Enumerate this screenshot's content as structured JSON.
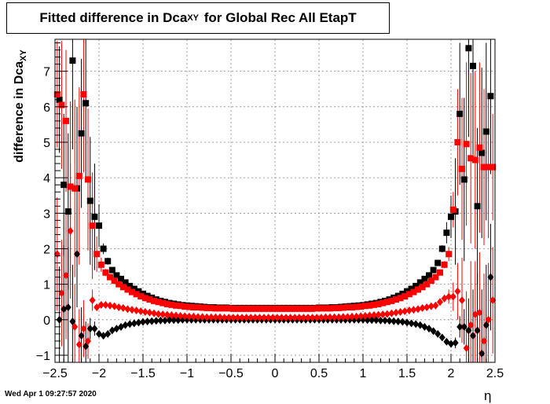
{
  "chart_data": {
    "type": "scatter",
    "title_prefix": "Fitted difference in Dca",
    "title_sub": "XY",
    "title_suffix": " for Global Rec All EtapT",
    "ylabel_prefix": "difference in Dca",
    "ylabel_sub": "XY",
    "xlabel": "η",
    "xlim": [
      -2.5,
      2.5
    ],
    "ylim": [
      -1.2,
      7.9
    ],
    "xticks": [
      -2.5,
      -2,
      -1.5,
      -1,
      -0.5,
      0,
      0.5,
      1,
      1.5,
      2,
      2.5
    ],
    "xtick_labels": [
      "−2.5",
      "−2",
      "−1.5",
      "−1",
      "−0.5",
      "0",
      "0.5",
      "1",
      "1.5",
      "2",
      "2.5"
    ],
    "yticks": [
      -1,
      0,
      1,
      2,
      3,
      4,
      5,
      6,
      7
    ],
    "ytick_labels": [
      "−1",
      "0",
      "1",
      "2",
      "3",
      "4",
      "5",
      "6",
      "7"
    ],
    "grid": true,
    "series": [
      {
        "marker": "square",
        "color": "#000000",
        "x": [
          -2.45,
          -2.4,
          -2.35,
          -2.3,
          -2.25,
          -2.2,
          -2.15,
          -2.1,
          -2.05,
          -2.0,
          -1.95,
          -1.9,
          -1.85,
          -1.8,
          -1.75,
          -1.7,
          -1.65,
          -1.6,
          -1.55,
          -1.5,
          -1.45,
          -1.4,
          -1.35,
          -1.3,
          -1.25,
          -1.2,
          -1.15,
          -1.1,
          -1.05,
          -1.0,
          -0.95,
          -0.9,
          -0.85,
          -0.8,
          -0.75,
          -0.7,
          -0.65,
          -0.6,
          -0.55,
          -0.5,
          -0.45,
          -0.4,
          -0.35,
          -0.3,
          -0.25,
          -0.2,
          -0.15,
          -0.1,
          -0.05,
          0.0,
          0.05,
          0.1,
          0.15,
          0.2,
          0.25,
          0.3,
          0.35,
          0.4,
          0.45,
          0.5,
          0.55,
          0.6,
          0.65,
          0.7,
          0.75,
          0.8,
          0.85,
          0.9,
          0.95,
          1.0,
          1.05,
          1.1,
          1.15,
          1.2,
          1.25,
          1.3,
          1.35,
          1.4,
          1.45,
          1.5,
          1.55,
          1.6,
          1.65,
          1.7,
          1.75,
          1.8,
          1.85,
          1.9,
          1.95,
          2.0,
          2.05,
          2.1,
          2.15,
          2.2,
          2.25,
          2.3,
          2.35,
          2.4,
          2.45
        ],
        "y": [
          6.2,
          3.8,
          3.05,
          7.3,
          3.7,
          5.25,
          6.1,
          3.35,
          2.9,
          2.65,
          2.0,
          1.65,
          1.4,
          1.25,
          1.15,
          1.05,
          0.95,
          0.87,
          0.8,
          0.73,
          0.67,
          0.62,
          0.57,
          0.53,
          0.5,
          0.47,
          0.45,
          0.43,
          0.41,
          0.4,
          0.39,
          0.38,
          0.37,
          0.36,
          0.35,
          0.35,
          0.34,
          0.34,
          0.34,
          0.33,
          0.33,
          0.33,
          0.33,
          0.33,
          0.33,
          0.33,
          0.33,
          0.33,
          0.33,
          0.33,
          0.33,
          0.33,
          0.33,
          0.33,
          0.33,
          0.33,
          0.33,
          0.33,
          0.33,
          0.34,
          0.34,
          0.34,
          0.35,
          0.35,
          0.36,
          0.37,
          0.38,
          0.39,
          0.4,
          0.41,
          0.43,
          0.45,
          0.47,
          0.5,
          0.53,
          0.57,
          0.62,
          0.67,
          0.73,
          0.8,
          0.87,
          0.95,
          1.05,
          1.15,
          1.25,
          1.4,
          1.6,
          2.0,
          2.45,
          2.9,
          3.05,
          5.8,
          3.95,
          7.65,
          7.15,
          3.2,
          4.7,
          5.3,
          6.3
        ],
        "err": [
          1.5,
          2.0,
          2.2,
          2.5,
          2.3,
          2.1,
          2.2,
          1.8,
          1.5,
          0.6,
          0.15,
          0.1,
          0.05,
          0.05,
          0,
          0,
          0,
          0,
          0,
          0,
          0,
          0,
          0,
          0,
          0,
          0,
          0,
          0,
          0,
          0,
          0,
          0,
          0,
          0,
          0,
          0,
          0,
          0,
          0,
          0,
          0,
          0,
          0,
          0,
          0,
          0,
          0,
          0,
          0,
          0,
          0,
          0,
          0,
          0,
          0,
          0,
          0,
          0,
          0,
          0,
          0,
          0,
          0,
          0,
          0,
          0,
          0,
          0,
          0,
          0,
          0,
          0,
          0,
          0,
          0,
          0,
          0,
          0,
          0,
          0,
          0,
          0,
          0,
          0,
          0,
          0.05,
          0.05,
          0.1,
          0.3,
          0.6,
          1.5,
          2.0,
          2.3,
          2.5,
          2.5,
          2.2,
          2.4,
          2.5,
          2.2
        ]
      },
      {
        "marker": "square",
        "color": "#ff0000",
        "x": [
          -2.475,
          -2.425,
          -2.375,
          -2.325,
          -2.275,
          -2.225,
          -2.175,
          -2.125,
          -2.075,
          -2.025,
          -1.975,
          -1.925,
          -1.875,
          -1.825,
          -1.775,
          -1.725,
          -1.675,
          -1.625,
          -1.575,
          -1.525,
          -1.475,
          -1.425,
          -1.375,
          -1.325,
          -1.275,
          -1.225,
          -1.175,
          -1.125,
          -1.075,
          -1.025,
          -0.975,
          -0.925,
          -0.875,
          -0.825,
          -0.775,
          -0.725,
          -0.675,
          -0.625,
          -0.575,
          -0.525,
          -0.475,
          -0.425,
          -0.375,
          -0.325,
          -0.275,
          -0.225,
          -0.175,
          -0.125,
          -0.075,
          -0.025,
          0.025,
          0.075,
          0.125,
          0.175,
          0.225,
          0.275,
          0.325,
          0.375,
          0.425,
          0.475,
          0.525,
          0.575,
          0.625,
          0.675,
          0.725,
          0.775,
          0.825,
          0.875,
          0.925,
          0.975,
          1.025,
          1.075,
          1.125,
          1.175,
          1.225,
          1.275,
          1.325,
          1.375,
          1.425,
          1.475,
          1.525,
          1.575,
          1.625,
          1.675,
          1.725,
          1.775,
          1.825,
          1.875,
          1.925,
          1.975,
          2.025,
          2.075,
          2.125,
          2.175,
          2.225,
          2.275,
          2.325,
          2.375,
          2.425,
          2.475
        ],
        "y": [
          6.35,
          6.05,
          5.6,
          3.75,
          3.7,
          4.05,
          6.35,
          3.95,
          2.65,
          1.85,
          1.55,
          1.33,
          1.2,
          1.1,
          1.0,
          0.92,
          0.85,
          0.78,
          0.72,
          0.66,
          0.61,
          0.57,
          0.53,
          0.5,
          0.47,
          0.44,
          0.42,
          0.4,
          0.39,
          0.37,
          0.36,
          0.35,
          0.35,
          0.34,
          0.33,
          0.33,
          0.32,
          0.32,
          0.32,
          0.32,
          0.31,
          0.31,
          0.31,
          0.31,
          0.31,
          0.31,
          0.31,
          0.31,
          0.31,
          0.31,
          0.31,
          0.31,
          0.31,
          0.31,
          0.31,
          0.31,
          0.31,
          0.31,
          0.31,
          0.32,
          0.32,
          0.32,
          0.32,
          0.33,
          0.33,
          0.34,
          0.35,
          0.35,
          0.36,
          0.37,
          0.39,
          0.4,
          0.42,
          0.44,
          0.47,
          0.5,
          0.53,
          0.57,
          0.61,
          0.66,
          0.72,
          0.78,
          0.85,
          0.92,
          1.0,
          1.1,
          1.2,
          1.33,
          1.55,
          1.85,
          3.1,
          5.0,
          4.25,
          4.95,
          4.55,
          4.5,
          4.85,
          4.3,
          4.3,
          4.3
        ],
        "err": [
          1.5,
          1.8,
          2.0,
          2.4,
          2.5,
          2.5,
          2.2,
          2.0,
          1.5,
          0.5,
          0.2,
          0.1,
          0.05,
          0,
          0,
          0,
          0,
          0,
          0,
          0,
          0,
          0,
          0,
          0,
          0,
          0,
          0,
          0,
          0,
          0,
          0,
          0,
          0,
          0,
          0,
          0,
          0,
          0,
          0,
          0,
          0,
          0,
          0,
          0,
          0,
          0,
          0,
          0,
          0,
          0,
          0,
          0,
          0,
          0,
          0,
          0,
          0,
          0,
          0,
          0,
          0,
          0,
          0,
          0,
          0,
          0,
          0,
          0,
          0,
          0,
          0,
          0,
          0,
          0,
          0,
          0,
          0,
          0,
          0,
          0,
          0,
          0,
          0,
          0,
          0,
          0,
          0,
          0.05,
          0.1,
          0.2,
          0.5,
          1.5,
          2.0,
          2.3,
          2.4,
          2.5,
          2.4,
          2.2,
          2.0,
          1.5
        ]
      },
      {
        "marker": "diamond",
        "color": "#000000",
        "x": [
          -2.45,
          -2.4,
          -2.35,
          -2.3,
          -2.25,
          -2.2,
          -2.15,
          -2.1,
          -2.05,
          -2.0,
          -1.95,
          -1.9,
          -1.85,
          -1.8,
          -1.75,
          -1.7,
          -1.65,
          -1.6,
          -1.55,
          -1.5,
          -1.45,
          -1.4,
          -1.35,
          -1.3,
          -1.25,
          -1.2,
          -1.15,
          -1.1,
          -1.05,
          -1.0,
          -0.95,
          -0.9,
          -0.85,
          -0.8,
          -0.75,
          -0.7,
          -0.65,
          -0.6,
          -0.55,
          -0.5,
          -0.45,
          -0.4,
          -0.35,
          -0.3,
          -0.25,
          -0.2,
          -0.15,
          -0.1,
          -0.05,
          0.0,
          0.05,
          0.1,
          0.15,
          0.2,
          0.25,
          0.3,
          0.35,
          0.4,
          0.45,
          0.5,
          0.55,
          0.6,
          0.65,
          0.7,
          0.75,
          0.8,
          0.85,
          0.9,
          0.95,
          1.0,
          1.05,
          1.1,
          1.15,
          1.2,
          1.25,
          1.3,
          1.35,
          1.4,
          1.45,
          1.5,
          1.55,
          1.6,
          1.65,
          1.7,
          1.75,
          1.8,
          1.85,
          1.9,
          1.95,
          2.0,
          2.05,
          2.1,
          2.15,
          2.2,
          2.25,
          2.3,
          2.35,
          2.4,
          2.45
        ],
        "y": [
          0.0,
          0.3,
          0.35,
          -0.05,
          1.85,
          -0.45,
          -0.75,
          -0.25,
          -0.25,
          -0.4,
          -0.45,
          -0.4,
          -0.3,
          -0.25,
          -0.2,
          -0.15,
          -0.12,
          -0.1,
          -0.08,
          -0.06,
          -0.05,
          -0.04,
          -0.03,
          -0.02,
          -0.02,
          -0.01,
          -0.01,
          -0.01,
          0.0,
          0.0,
          0.0,
          0.0,
          0.0,
          0.0,
          0.0,
          0.0,
          0.0,
          0.0,
          0.0,
          0.0,
          0.0,
          0.0,
          0.0,
          0.0,
          0.0,
          0.0,
          0.0,
          0.0,
          0.0,
          0.0,
          0.0,
          0.0,
          0.0,
          0.0,
          0.0,
          0.0,
          0.0,
          0.0,
          0.0,
          0.0,
          0.0,
          0.0,
          0.0,
          0.0,
          0.0,
          0.0,
          0.0,
          0.0,
          0.0,
          0.0,
          -0.01,
          -0.01,
          -0.01,
          -0.02,
          -0.02,
          -0.03,
          -0.04,
          -0.05,
          -0.06,
          -0.08,
          -0.1,
          -0.12,
          -0.15,
          -0.2,
          -0.25,
          -0.32,
          -0.4,
          -0.5,
          -0.62,
          -0.68,
          -0.65,
          -0.2,
          -0.2,
          -0.3,
          -0.45,
          -0.3,
          -0.95,
          -0.15,
          1.2
        ],
        "err": [
          1.5,
          1.8,
          1.7,
          1.6,
          1.5,
          0.8,
          0.7,
          0.3,
          0.2,
          0.1,
          0.05,
          0,
          0,
          0,
          0,
          0,
          0,
          0,
          0,
          0,
          0,
          0,
          0,
          0,
          0,
          0,
          0,
          0,
          0,
          0,
          0,
          0,
          0,
          0,
          0,
          0,
          0,
          0,
          0,
          0,
          0,
          0,
          0,
          0,
          0,
          0,
          0,
          0,
          0,
          0,
          0,
          0,
          0,
          0,
          0,
          0,
          0,
          0,
          0,
          0,
          0,
          0,
          0,
          0,
          0,
          0,
          0,
          0,
          0,
          0,
          0,
          0,
          0,
          0,
          0,
          0,
          0,
          0,
          0,
          0,
          0,
          0,
          0,
          0,
          0,
          0,
          0,
          0,
          0.05,
          0.1,
          0.15,
          0.3,
          0.5,
          0.9,
          1.3,
          1.6,
          1.8,
          1.7,
          1.5
        ]
      },
      {
        "marker": "diamond",
        "color": "#ff0000",
        "x": [
          -2.475,
          -2.425,
          -2.375,
          -2.325,
          -2.275,
          -2.225,
          -2.175,
          -2.125,
          -2.075,
          -2.025,
          -1.975,
          -1.925,
          -1.875,
          -1.825,
          -1.775,
          -1.725,
          -1.675,
          -1.625,
          -1.575,
          -1.525,
          -1.475,
          -1.425,
          -1.375,
          -1.325,
          -1.275,
          -1.225,
          -1.175,
          -1.125,
          -1.075,
          -1.025,
          -0.975,
          -0.925,
          -0.875,
          -0.825,
          -0.775,
          -0.725,
          -0.675,
          -0.625,
          -0.575,
          -0.525,
          -0.475,
          -0.425,
          -0.375,
          -0.325,
          -0.275,
          -0.225,
          -0.175,
          -0.125,
          -0.075,
          -0.025,
          0.025,
          0.075,
          0.125,
          0.175,
          0.225,
          0.275,
          0.325,
          0.375,
          0.425,
          0.475,
          0.525,
          0.575,
          0.625,
          0.675,
          0.725,
          0.775,
          0.825,
          0.875,
          0.925,
          0.975,
          1.025,
          1.075,
          1.125,
          1.175,
          1.225,
          1.275,
          1.325,
          1.375,
          1.425,
          1.475,
          1.525,
          1.575,
          1.625,
          1.675,
          1.725,
          1.775,
          1.825,
          1.875,
          1.925,
          1.975,
          2.025,
          2.075,
          2.125,
          2.175,
          2.225,
          2.275,
          2.325,
          2.375,
          2.425,
          2.475
        ],
        "y": [
          1.85,
          0.75,
          1.25,
          2.5,
          -0.2,
          -0.7,
          -0.25,
          -0.6,
          0.55,
          0.35,
          0.42,
          0.42,
          0.4,
          0.38,
          0.35,
          0.33,
          0.3,
          0.28,
          0.26,
          0.24,
          0.22,
          0.2,
          0.18,
          0.16,
          0.15,
          0.14,
          0.13,
          0.12,
          0.11,
          0.1,
          0.09,
          0.09,
          0.08,
          0.08,
          0.07,
          0.07,
          0.07,
          0.07,
          0.06,
          0.06,
          0.06,
          0.06,
          0.06,
          0.06,
          0.06,
          0.06,
          0.06,
          0.06,
          0.06,
          0.06,
          0.06,
          0.06,
          0.06,
          0.06,
          0.06,
          0.06,
          0.06,
          0.06,
          0.06,
          0.06,
          0.06,
          0.07,
          0.07,
          0.07,
          0.07,
          0.08,
          0.08,
          0.09,
          0.09,
          0.1,
          0.11,
          0.12,
          0.13,
          0.14,
          0.15,
          0.16,
          0.18,
          0.2,
          0.22,
          0.24,
          0.26,
          0.28,
          0.3,
          0.33,
          0.35,
          0.38,
          0.4,
          0.5,
          0.6,
          0.65,
          0.65,
          0.8,
          0.55,
          -0.8,
          -0.15,
          0.15,
          0.2,
          -0.6,
          0.0,
          0.55
        ],
        "err": [
          1.6,
          1.5,
          1.8,
          1.9,
          1.2,
          1.0,
          0.8,
          0.5,
          0.3,
          0.1,
          0.05,
          0,
          0,
          0,
          0,
          0,
          0,
          0,
          0,
          0,
          0,
          0,
          0,
          0,
          0,
          0,
          0,
          0,
          0,
          0,
          0,
          0,
          0,
          0,
          0,
          0,
          0,
          0,
          0,
          0,
          0,
          0,
          0,
          0,
          0,
          0,
          0,
          0,
          0,
          0,
          0,
          0,
          0,
          0,
          0,
          0,
          0,
          0,
          0,
          0,
          0,
          0,
          0,
          0,
          0,
          0,
          0,
          0,
          0,
          0,
          0,
          0,
          0,
          0,
          0,
          0,
          0,
          0,
          0,
          0,
          0,
          0,
          0,
          0,
          0,
          0,
          0,
          0.05,
          0.1,
          0.2,
          0.4,
          0.8,
          1.2,
          1.6,
          1.8,
          1.5,
          1.7,
          1.9,
          1.6,
          1.5
        ]
      }
    ]
  },
  "footer": {
    "timestamp": "Wed Apr  1 09:27:57 2020"
  }
}
